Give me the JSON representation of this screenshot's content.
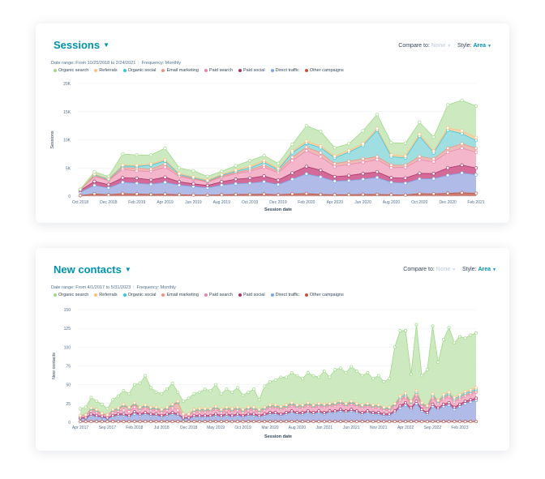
{
  "colors": {
    "Organic search": "#c4e5b4",
    "Referrals": "#ffd0a8",
    "Organic social": "#8fe0ea",
    "Email marketing": "#f9b6ae",
    "Paid search": "#f5b5cf",
    "Paid social": "#cd5d8e",
    "Direct traffic": "#a9c9f5",
    "Other campaigns": "#d56e5c"
  },
  "stroke_colors": {
    "Organic search": "#9fd98a",
    "Referrals": "#ffbf80",
    "Organic social": "#3dc6d6",
    "Email marketing": "#f2937f",
    "Paid search": "#ec85ad",
    "Paid social": "#a8336b",
    "Direct traffic": "#7aa7ea",
    "Other campaigns": "#c2553f"
  },
  "sessions_panel": {
    "title": "Sessions",
    "compare_label": "Compare to:",
    "compare_value": "None",
    "style_label": "Style:",
    "style_value": "Area",
    "date_range": "Date range: From 10/25/2018 to 2/24/2021",
    "frequency": "Frequency: Monthly"
  },
  "contacts_panel": {
    "title": "New contacts",
    "compare_label": "Compare to:",
    "compare_value": "None",
    "style_label": "Style:",
    "style_value": "Area",
    "date_range": "Date range: From 4/1/2017 to 5/31/2023",
    "frequency": "Frequency: Monthly"
  },
  "chart_data": [
    {
      "type": "area",
      "stacked": true,
      "xlabel": "Session date",
      "ylabel": "Sessions",
      "ylim": [
        0,
        20000
      ],
      "y_ticks": [
        0,
        5000,
        10000,
        15000,
        20000
      ],
      "y_tick_labels": [
        "0",
        "5K",
        "10K",
        "15K",
        "20K"
      ],
      "x_tick_labels": [
        "Oct 2018",
        "Dec 2018",
        "Feb 2019",
        "Apr 2019",
        "Jun 2019",
        "Aug 2019",
        "Oct 2019",
        "Dec 2019",
        "Feb 2020",
        "Apr 2020",
        "Jun 2020",
        "Aug 2020",
        "Oct 2020",
        "Dec 2020",
        "Feb 2021"
      ],
      "x_tick_index": [
        0,
        2,
        4,
        6,
        8,
        10,
        12,
        14,
        16,
        18,
        20,
        22,
        24,
        26,
        28
      ],
      "legend": [
        "Organic search",
        "Referrals",
        "Organic social",
        "Email marketing",
        "Paid search",
        "Paid social",
        "Direct traffic",
        "Other campaigns"
      ],
      "grid": true,
      "totals": [
        1200,
        4300,
        3500,
        7500,
        7300,
        7300,
        8500,
        5000,
        4500,
        3500,
        4400,
        5400,
        6300,
        7200,
        5800,
        9200,
        12500,
        11500,
        8600,
        9300,
        11600,
        14500,
        9500,
        9400,
        13100,
        10500,
        16200,
        17000,
        16000
      ],
      "series": [
        {
          "name": "Other campaigns",
          "values": [
            100,
            400,
            250,
            450,
            380,
            300,
            350,
            250,
            200,
            180,
            250,
            300,
            300,
            350,
            250,
            400,
            450,
            300,
            250,
            250,
            300,
            300,
            250,
            200,
            450,
            400,
            500,
            600,
            500
          ]
        },
        {
          "name": "Direct traffic",
          "values": [
            600,
            1500,
            1200,
            2000,
            1900,
            1800,
            2100,
            1700,
            1500,
            1300,
            1700,
            1900,
            2000,
            2200,
            1800,
            2600,
            3500,
            3100,
            2400,
            2500,
            2700,
            3000,
            2200,
            2100,
            2600,
            2700,
            3200,
            3500,
            3300
          ]
        },
        {
          "name": "Paid social",
          "values": [
            300,
            700,
            600,
            800,
            900,
            800,
            900,
            600,
            500,
            400,
            600,
            800,
            900,
            1000,
            800,
            1100,
            1300,
            1200,
            800,
            900,
            1000,
            1000,
            800,
            900,
            1000,
            900,
            1300,
            1400,
            1200
          ]
        },
        {
          "name": "Paid search",
          "values": [
            200,
            900,
            700,
            1500,
            1300,
            1500,
            1800,
            900,
            800,
            600,
            800,
            1000,
            1200,
            1600,
            1300,
            2200,
            2800,
            2400,
            1800,
            2000,
            2000,
            2200,
            1800,
            1900,
            2400,
            2100,
            2800,
            3000,
            2800
          ]
        },
        {
          "name": "Email marketing",
          "values": [
            0,
            100,
            100,
            300,
            500,
            400,
            550,
            200,
            100,
            120,
            200,
            200,
            300,
            350,
            300,
            600,
            650,
            700,
            500,
            550,
            600,
            500,
            450,
            400,
            600,
            500,
            700,
            800,
            700
          ]
        },
        {
          "name": "Organic social",
          "values": [
            0,
            200,
            150,
            300,
            300,
            700,
            550,
            200,
            150,
            100,
            150,
            200,
            300,
            500,
            250,
            800,
            700,
            900,
            1050,
            1600,
            2400,
            4700,
            1500,
            1300,
            3600,
            1100,
            3200,
            1800,
            1400
          ]
        },
        {
          "name": "Referrals",
          "values": [
            0,
            100,
            100,
            150,
            170,
            200,
            200,
            150,
            150,
            100,
            150,
            200,
            300,
            300,
            200,
            300,
            350,
            300,
            300,
            300,
            300,
            300,
            300,
            300,
            350,
            300,
            400,
            500,
            500
          ]
        },
        {
          "name": "Organic search",
          "values": [
            0,
            400,
            400,
            2000,
            1850,
            1600,
            2050,
            1000,
            1100,
            700,
            550,
            800,
            1000,
            900,
            900,
            1200,
            2750,
            2600,
            1500,
            1200,
            2300,
            2500,
            2200,
            2300,
            2100,
            2500,
            4100,
            5400,
            5600
          ]
        }
      ]
    },
    {
      "type": "area",
      "stacked": true,
      "xlabel": "Session date",
      "ylabel": "New contacts",
      "ylim": [
        0,
        150
      ],
      "y_ticks": [
        0,
        25,
        50,
        75,
        100,
        125,
        150
      ],
      "y_tick_labels": [
        "0",
        "25",
        "50",
        "75",
        "100",
        "125",
        "150"
      ],
      "x_tick_labels": [
        "Apr 2017",
        "Sep 2017",
        "Feb 2018",
        "Jul 2018",
        "Dec 2018",
        "May 2019",
        "Oct 2019",
        "Mar 2020",
        "Aug 2020",
        "Jan 2021",
        "Jun 2021",
        "Nov 2021",
        "Apr 2022",
        "Sep 2022",
        "Feb 2023"
      ],
      "x_tick_index": [
        0,
        5,
        10,
        15,
        20,
        25,
        30,
        35,
        40,
        45,
        50,
        55,
        60,
        65,
        70
      ],
      "legend": [
        "Organic search",
        "Referrals",
        "Organic social",
        "Email marketing",
        "Paid search",
        "Paid social",
        "Direct traffic",
        "Other campaigns"
      ],
      "grid": true,
      "totals": [
        18,
        20,
        33,
        28,
        24,
        18,
        30,
        35,
        42,
        38,
        50,
        52,
        62,
        46,
        40,
        38,
        44,
        52,
        40,
        28,
        32,
        38,
        40,
        44,
        42,
        50,
        38,
        44,
        40,
        46,
        36,
        40,
        44,
        30,
        48,
        54,
        56,
        60,
        60,
        66,
        62,
        58,
        66,
        62,
        60,
        68,
        60,
        70,
        72,
        66,
        74,
        68,
        62,
        66,
        58,
        62,
        54,
        58,
        100,
        122,
        122,
        64,
        130,
        62,
        70,
        128,
        80,
        110,
        126,
        106,
        114,
        112,
        116,
        119
      ],
      "series": [
        {
          "name": "Other campaigns",
          "values": [
            1,
            1,
            1,
            1,
            1,
            1,
            1,
            1,
            1,
            1,
            1,
            1,
            1,
            1,
            1,
            1,
            1,
            1,
            1,
            1,
            1,
            1,
            1,
            1,
            1,
            1,
            1,
            1,
            1,
            1,
            1,
            1,
            1,
            1,
            1,
            1,
            1,
            1,
            1,
            1,
            1,
            1,
            1,
            1,
            1,
            1,
            1,
            1,
            1,
            1,
            1,
            1,
            1,
            1,
            1,
            1,
            1,
            1,
            1,
            1,
            1,
            1,
            1,
            1,
            1,
            1,
            1,
            1,
            1,
            1,
            1,
            1,
            1,
            1
          ]
        },
        {
          "name": "Direct traffic",
          "values": [
            4,
            4,
            8,
            6,
            6,
            4,
            6,
            8,
            8,
            6,
            10,
            8,
            10,
            8,
            8,
            6,
            8,
            10,
            8,
            4,
            4,
            6,
            6,
            6,
            6,
            8,
            6,
            8,
            6,
            8,
            6,
            8,
            8,
            6,
            8,
            10,
            10,
            8,
            10,
            12,
            10,
            10,
            12,
            10,
            12,
            10,
            12,
            12,
            14,
            12,
            14,
            12,
            10,
            12,
            10,
            10,
            8,
            8,
            12,
            18,
            22,
            16,
            24,
            14,
            10,
            20,
            16,
            20,
            22,
            16,
            20,
            24,
            26,
            28
          ]
        },
        {
          "name": "Paid social",
          "values": [
            1,
            1,
            2,
            2,
            1,
            1,
            2,
            2,
            2,
            2,
            3,
            2,
            2,
            2,
            2,
            2,
            2,
            2,
            2,
            1,
            1,
            2,
            2,
            2,
            2,
            2,
            2,
            2,
            2,
            2,
            2,
            2,
            2,
            2,
            2,
            2,
            2,
            2,
            2,
            2,
            2,
            2,
            2,
            2,
            2,
            2,
            2,
            2,
            2,
            2,
            2,
            2,
            2,
            2,
            2,
            2,
            2,
            2,
            2,
            3,
            3,
            2,
            3,
            2,
            2,
            3,
            2,
            3,
            3,
            3,
            3,
            3,
            3,
            3
          ]
        },
        {
          "name": "Paid search",
          "values": [
            2,
            3,
            4,
            4,
            3,
            3,
            4,
            4,
            5,
            5,
            6,
            5,
            6,
            5,
            5,
            4,
            5,
            6,
            5,
            3,
            4,
            4,
            5,
            5,
            5,
            6,
            4,
            5,
            5,
            5,
            4,
            5,
            5,
            4,
            5,
            6,
            6,
            6,
            6,
            7,
            6,
            6,
            7,
            6,
            6,
            7,
            6,
            7,
            7,
            6,
            7,
            6,
            6,
            6,
            6,
            6,
            5,
            5,
            6,
            7,
            7,
            5,
            8,
            5,
            5,
            8,
            6,
            7,
            8,
            7,
            7,
            7,
            7,
            8
          ]
        },
        {
          "name": "Email marketing",
          "values": [
            1,
            1,
            2,
            2,
            1,
            1,
            2,
            2,
            6,
            4,
            4,
            2,
            2,
            2,
            2,
            2,
            2,
            3,
            10,
            2,
            1,
            2,
            2,
            2,
            2,
            2,
            2,
            2,
            2,
            2,
            2,
            2,
            2,
            2,
            2,
            2,
            2,
            2,
            2,
            2,
            2,
            2,
            2,
            2,
            2,
            2,
            2,
            2,
            2,
            2,
            2,
            2,
            2,
            2,
            2,
            2,
            2,
            2,
            2,
            2,
            2,
            2,
            2,
            2,
            2,
            2,
            2,
            2,
            2,
            2,
            2,
            2,
            2,
            2
          ]
        },
        {
          "name": "Organic social",
          "values": [
            0,
            0,
            1,
            1,
            0,
            0,
            1,
            1,
            1,
            1,
            1,
            1,
            1,
            1,
            1,
            1,
            1,
            1,
            1,
            0,
            0,
            1,
            1,
            1,
            1,
            1,
            1,
            1,
            1,
            1,
            1,
            1,
            1,
            1,
            1,
            1,
            1,
            1,
            1,
            1,
            1,
            1,
            1,
            1,
            1,
            1,
            1,
            1,
            1,
            1,
            1,
            1,
            1,
            1,
            1,
            1,
            1,
            1,
            1,
            2,
            2,
            1,
            2,
            1,
            1,
            2,
            1,
            2,
            2,
            2,
            2,
            2,
            2,
            2
          ]
        },
        {
          "name": "Referrals",
          "values": [
            0,
            0,
            1,
            1,
            0,
            0,
            1,
            1,
            1,
            1,
            1,
            1,
            1,
            1,
            1,
            1,
            1,
            1,
            1,
            0,
            0,
            1,
            1,
            1,
            1,
            1,
            1,
            1,
            1,
            1,
            1,
            1,
            1,
            1,
            1,
            1,
            1,
            1,
            1,
            1,
            1,
            1,
            1,
            1,
            1,
            1,
            1,
            1,
            1,
            1,
            1,
            1,
            1,
            1,
            1,
            1,
            1,
            1,
            1,
            2,
            2,
            1,
            2,
            1,
            1,
            2,
            1,
            2,
            2,
            2,
            2,
            2,
            2,
            2
          ]
        },
        {
          "name": "Organic search",
          "values": [
            9,
            10,
            14,
            11,
            12,
            8,
            13,
            16,
            18,
            18,
            24,
            32,
            39,
            26,
            20,
            21,
            24,
            28,
            12,
            17,
            21,
            20,
            22,
            26,
            24,
            29,
            21,
            24,
            22,
            26,
            19,
            20,
            24,
            13,
            29,
            31,
            33,
            39,
            37,
            40,
            39,
            35,
            40,
            39,
            35,
            44,
            35,
            44,
            44,
            41,
            46,
            43,
            39,
            41,
            35,
            39,
            34,
            38,
            75,
            87,
            83,
            36,
            88,
            36,
            48,
            90,
            51,
            73,
            86,
            73,
            77,
            71,
            73,
            73
          ]
        }
      ]
    }
  ]
}
